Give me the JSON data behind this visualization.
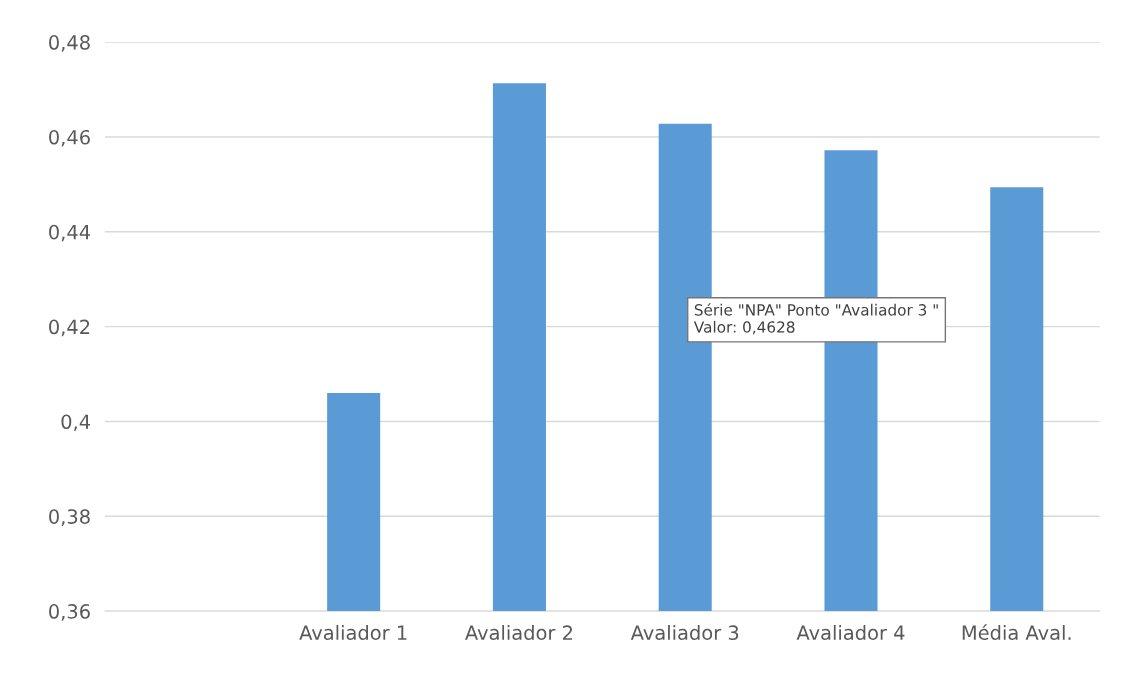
{
  "chart_data": {
    "type": "bar",
    "categories": [
      null,
      "Avaliador 1",
      "Avaliador 2",
      "Avaliador 3",
      "Avaliador 4",
      "Média Aval."
    ],
    "series": [
      {
        "color": "#5b9bd5",
        "values": [
          null,
          0.406,
          0.4713,
          0.4628,
          0.4572,
          0.4494
        ]
      }
    ],
    "ylim": [
      0.36,
      0.48
    ],
    "yticks": [
      {
        "value": 0.36,
        "label": "0,36"
      },
      {
        "value": 0.38,
        "label": "0,38"
      },
      {
        "value": 0.4,
        "label": "0,4"
      },
      {
        "value": 0.42,
        "label": "0,42"
      },
      {
        "value": 0.44,
        "label": "0,44"
      },
      {
        "value": 0.46,
        "label": "0,46"
      },
      {
        "value": 0.48,
        "label": "0,48"
      }
    ],
    "grid": "y",
    "annotations": [
      "Série \"NPA\" Ponto \"Avaliador 3 \"\nValor: 0,4628"
    ]
  }
}
